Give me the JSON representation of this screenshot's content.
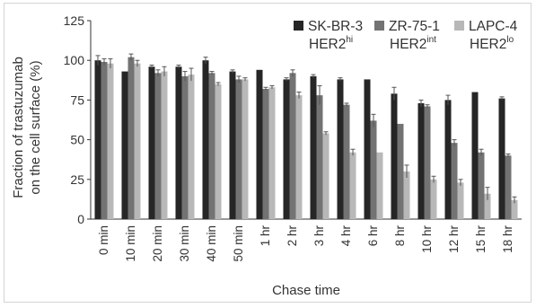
{
  "chart_data": {
    "type": "bar",
    "title": "",
    "xlabel": "Chase time",
    "ylabel_line1": "Fraction of trastuzumab",
    "ylabel_line2": "on the cell surface (%)",
    "ylim": [
      0,
      125
    ],
    "yticks": [
      "0",
      "25",
      "50",
      "75",
      "100",
      "125"
    ],
    "grid": false,
    "legend_position": "top-right",
    "categories": [
      "0 min",
      "10 min",
      "20 min",
      "30 min",
      "40 min",
      "50 min",
      "1 hr",
      "2 hr",
      "3 hr",
      "4 hr",
      "6 hr",
      "8 hr",
      "10 hr",
      "12 hr",
      "15 hr",
      "18 hr"
    ],
    "series": [
      {
        "name_line1": "SK-BR-3",
        "name_line2": "HER2",
        "name_sup": "hi",
        "color": "#262626",
        "values": [
          100,
          93,
          96,
          96,
          100,
          93,
          94,
          88,
          90,
          88,
          88,
          79,
          73,
          75,
          80,
          76
        ],
        "errors": [
          3,
          0,
          1,
          1,
          2,
          1,
          0,
          1,
          1,
          1,
          0,
          4,
          2,
          3,
          0,
          1
        ]
      },
      {
        "name_line1": "ZR-75-1",
        "name_line2": "HER2",
        "name_sup": "int",
        "color": "#737373",
        "values": [
          99,
          102,
          92,
          90,
          92,
          88,
          82,
          92,
          78,
          72,
          62,
          60,
          71,
          48,
          42,
          40
        ],
        "errors": [
          2,
          2,
          2,
          3,
          1,
          2,
          1,
          2,
          6,
          1,
          4,
          0,
          1,
          2,
          2,
          1
        ]
      },
      {
        "name_line1": "LAPC-4",
        "name_line2": "HER2",
        "name_sup": "lo",
        "color": "#b8b8b8",
        "values": [
          98,
          98,
          93,
          91,
          85,
          88,
          83,
          78,
          54,
          42,
          42,
          30,
          25,
          23,
          16,
          12
        ],
        "errors": [
          3,
          2,
          3,
          4,
          1,
          1,
          1,
          2,
          1,
          2,
          0,
          4,
          2,
          2,
          4,
          2
        ]
      }
    ]
  }
}
